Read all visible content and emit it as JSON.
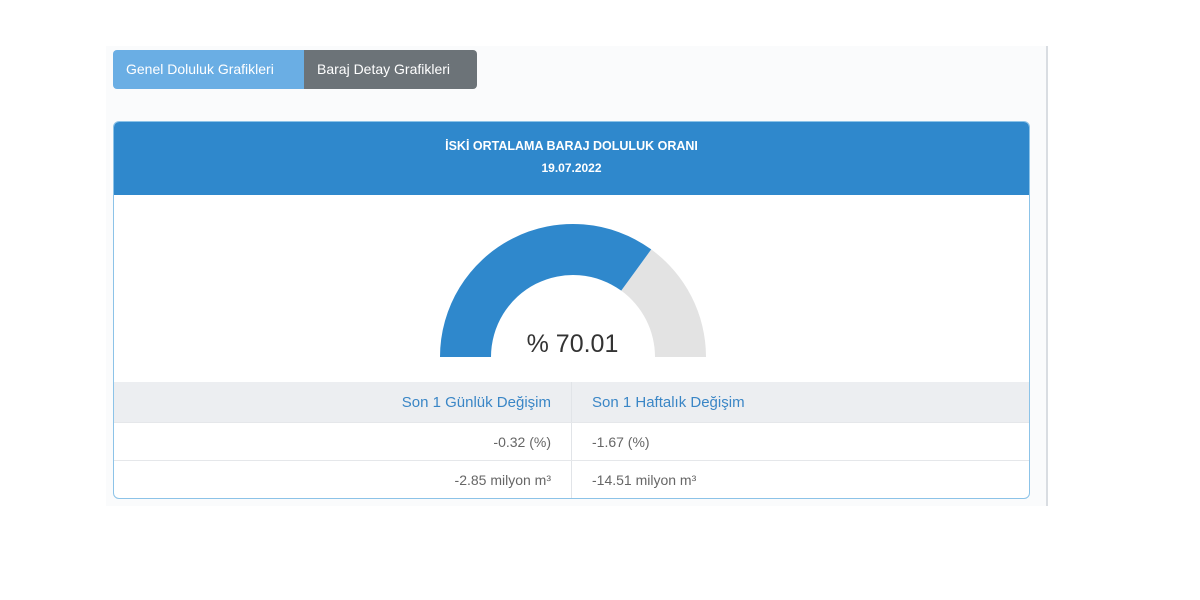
{
  "tabs": [
    {
      "label": "Genel Doluluk Grafikleri",
      "active": true
    },
    {
      "label": "Baraj Detay Grafikleri",
      "active": false
    }
  ],
  "header": {
    "title": "İSKİ ORTALAMA BARAJ DOLULUK ORANI",
    "date": "19.07.2022"
  },
  "gauge": {
    "value": 70.01,
    "display": "% 70.01",
    "max": 100,
    "fill_color": "#2f88cc",
    "track_color": "#e3e3e3"
  },
  "stats": {
    "headers": [
      "Son 1 Günlük Değişim",
      "Son 1 Haftalık Değişim"
    ],
    "rows": [
      [
        "-0.32 (%)",
        "-1.67 (%)"
      ],
      [
        "-2.85 milyon m³",
        "-14.51 milyon m³"
      ]
    ]
  }
}
